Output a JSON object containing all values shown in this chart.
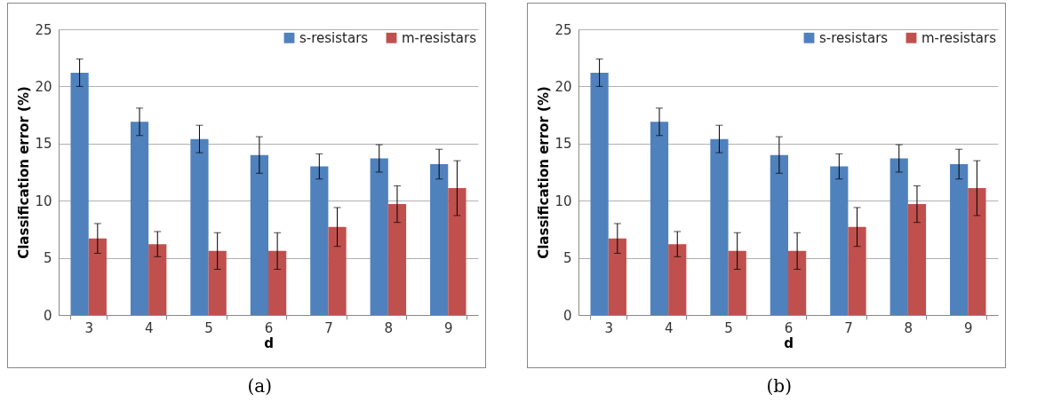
{
  "chart_data": [
    {
      "type": "bar",
      "xlabel": "d",
      "ylabel": "Classification error (%)",
      "categories": [
        "3",
        "4",
        "5",
        "6",
        "7",
        "8",
        "9"
      ],
      "ylim": [
        0,
        25
      ],
      "yticks": [
        0,
        5,
        10,
        15,
        20,
        25
      ],
      "grid": "y",
      "legend": "top right",
      "annotations": [
        "(a)"
      ],
      "series": [
        {
          "name": "s-resistars",
          "color": "#4f81bd",
          "values": [
            21.2,
            16.9,
            15.4,
            14.0,
            13.0,
            13.7,
            13.2
          ],
          "errors": [
            1.2,
            1.2,
            1.2,
            1.6,
            1.1,
            1.2,
            1.3
          ]
        },
        {
          "name": "m-resistars",
          "color": "#c0504d",
          "values": [
            6.7,
            6.2,
            5.6,
            5.6,
            7.7,
            9.7,
            11.1
          ],
          "errors": [
            1.3,
            1.1,
            1.6,
            1.6,
            1.7,
            1.6,
            2.4
          ]
        }
      ]
    },
    {
      "type": "bar",
      "xlabel": "d",
      "ylabel": "Classification error (%)",
      "categories": [
        "3",
        "4",
        "5",
        "6",
        "7",
        "8",
        "9"
      ],
      "ylim": [
        0,
        25
      ],
      "yticks": [
        0,
        5,
        10,
        15,
        20,
        25
      ],
      "grid": "y",
      "legend": "top right",
      "annotations": [
        "(b)"
      ],
      "series": [
        {
          "name": "s-resistars",
          "color": "#4f81bd",
          "values": [
            21.2,
            16.9,
            15.4,
            14.0,
            13.0,
            13.7,
            13.2
          ],
          "errors": [
            1.2,
            1.2,
            1.2,
            1.6,
            1.1,
            1.2,
            1.3
          ]
        },
        {
          "name": "m-resistars",
          "color": "#c0504d",
          "values": [
            6.7,
            6.2,
            5.6,
            5.6,
            7.7,
            9.7,
            11.1
          ],
          "errors": [
            1.3,
            1.1,
            1.6,
            1.6,
            1.7,
            1.6,
            2.4
          ]
        }
      ]
    }
  ]
}
